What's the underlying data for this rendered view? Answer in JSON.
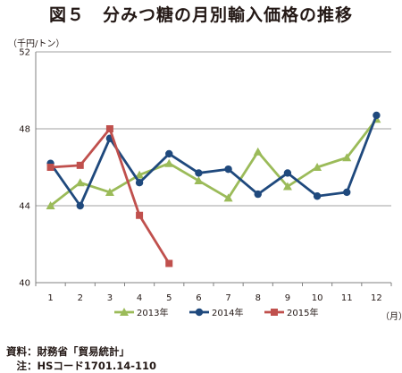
{
  "title": "図５　分みつ糖の月別輸入価格の推移",
  "y_unit": "（千円/トン）",
  "x_unit": "（月）",
  "source": "資料：財務省「貿易統計」",
  "note": "　注：HSコード1701.14-110",
  "chart_data": {
    "type": "line",
    "title": "図５　分みつ糖の月別輸入価格の推移",
    "xlabel": "（月）",
    "ylabel": "（千円/トン）",
    "categories": [
      "1",
      "2",
      "3",
      "4",
      "5",
      "6",
      "7",
      "8",
      "9",
      "10",
      "11",
      "12"
    ],
    "ylim": [
      40,
      52
    ],
    "yticks": [
      40,
      44,
      48,
      52
    ],
    "grid": "horizontal",
    "legend_position": "bottom",
    "series": [
      {
        "name": "2013年",
        "color": "#9bbb59",
        "marker": "triangle",
        "values": [
          44.0,
          45.2,
          44.7,
          45.6,
          46.2,
          45.3,
          44.4,
          46.8,
          45.0,
          46.0,
          46.5,
          48.5
        ]
      },
      {
        "name": "2014年",
        "color": "#1f497d",
        "marker": "circle",
        "values": [
          46.2,
          44.0,
          47.5,
          45.2,
          46.7,
          45.7,
          45.9,
          44.6,
          45.7,
          44.5,
          44.7,
          48.7
        ]
      },
      {
        "name": "2015年",
        "color": "#c0504d",
        "marker": "square",
        "values": [
          46.0,
          46.1,
          48.0,
          43.5,
          41.0,
          null,
          null,
          null,
          null,
          null,
          null,
          null
        ]
      }
    ]
  }
}
